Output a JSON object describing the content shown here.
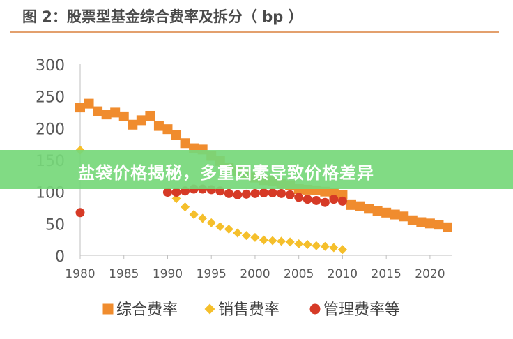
{
  "figure_title": "图 2：股票型基金综合费率及拆分（ bp ）",
  "overlay_banner": "盐袋价格揭秘，多重因素导致价格差异",
  "colors": {
    "composite": "#f08c2e",
    "sales": "#f5bf2b",
    "management": "#d63a26",
    "title_rule": "#e3a06d",
    "banner": "#76d87a"
  },
  "chart_data": {
    "type": "scatter",
    "xlim": [
      1980,
      2022
    ],
    "ylim": [
      0,
      300
    ],
    "x_ticks": [
      1980,
      1985,
      1990,
      1995,
      2000,
      2005,
      2010,
      2015,
      2020
    ],
    "y_ticks": [
      0,
      50,
      100,
      150,
      200,
      250,
      300
    ],
    "grid": false,
    "legend_position": "bottom",
    "series": [
      {
        "name": "综合费率",
        "marker": "square",
        "color": "#f08c2e",
        "x": [
          1980,
          1981,
          1982,
          1983,
          1984,
          1985,
          1986,
          1987,
          1988,
          1989,
          1990,
          1991,
          1992,
          1993,
          1994,
          1995,
          1996,
          1997,
          1998,
          1999,
          2000,
          2001,
          2002,
          2003,
          2004,
          2005,
          2006,
          2007,
          2008,
          2009,
          2010,
          2011,
          2012,
          2013,
          2014,
          2015,
          2016,
          2017,
          2018,
          2019,
          2020,
          2021,
          2022
        ],
        "y": [
          232,
          238,
          226,
          221,
          224,
          218,
          205,
          212,
          219,
          203,
          198,
          189,
          176,
          168,
          166,
          156,
          148,
          138,
          132,
          128,
          122,
          118,
          116,
          112,
          110,
          104,
          103,
          102,
          100,
          98,
          95,
          79,
          77,
          73,
          70,
          67,
          64,
          61,
          55,
          52,
          50,
          48,
          44
        ]
      },
      {
        "name": "销售费率",
        "marker": "diamond",
        "color": "#f5bf2b",
        "x": [
          1980,
          1991,
          1992,
          1993,
          1994,
          1995,
          1996,
          1997,
          1998,
          1999,
          2000,
          2001,
          2002,
          2003,
          2004,
          2005,
          2006,
          2007,
          2008,
          2009,
          2010
        ],
        "y": [
          165,
          89,
          76,
          64,
          58,
          51,
          45,
          41,
          35,
          31,
          28,
          24,
          23,
          22,
          21,
          18,
          17,
          15,
          14,
          12,
          9
        ]
      },
      {
        "name": "管理费率等",
        "marker": "circle",
        "color": "#d63a26",
        "x": [
          1980,
          1990,
          1991,
          1992,
          1993,
          1994,
          1995,
          1996,
          1997,
          1998,
          1999,
          2000,
          2001,
          2002,
          2003,
          2004,
          2005,
          2006,
          2007,
          2008,
          2009,
          2010
        ],
        "y": [
          67,
          99,
          99,
          101,
          104,
          104,
          103,
          101,
          97,
          95,
          96,
          97,
          98,
          98,
          97,
          95,
          91,
          88,
          86,
          83,
          88,
          85
        ]
      }
    ]
  }
}
